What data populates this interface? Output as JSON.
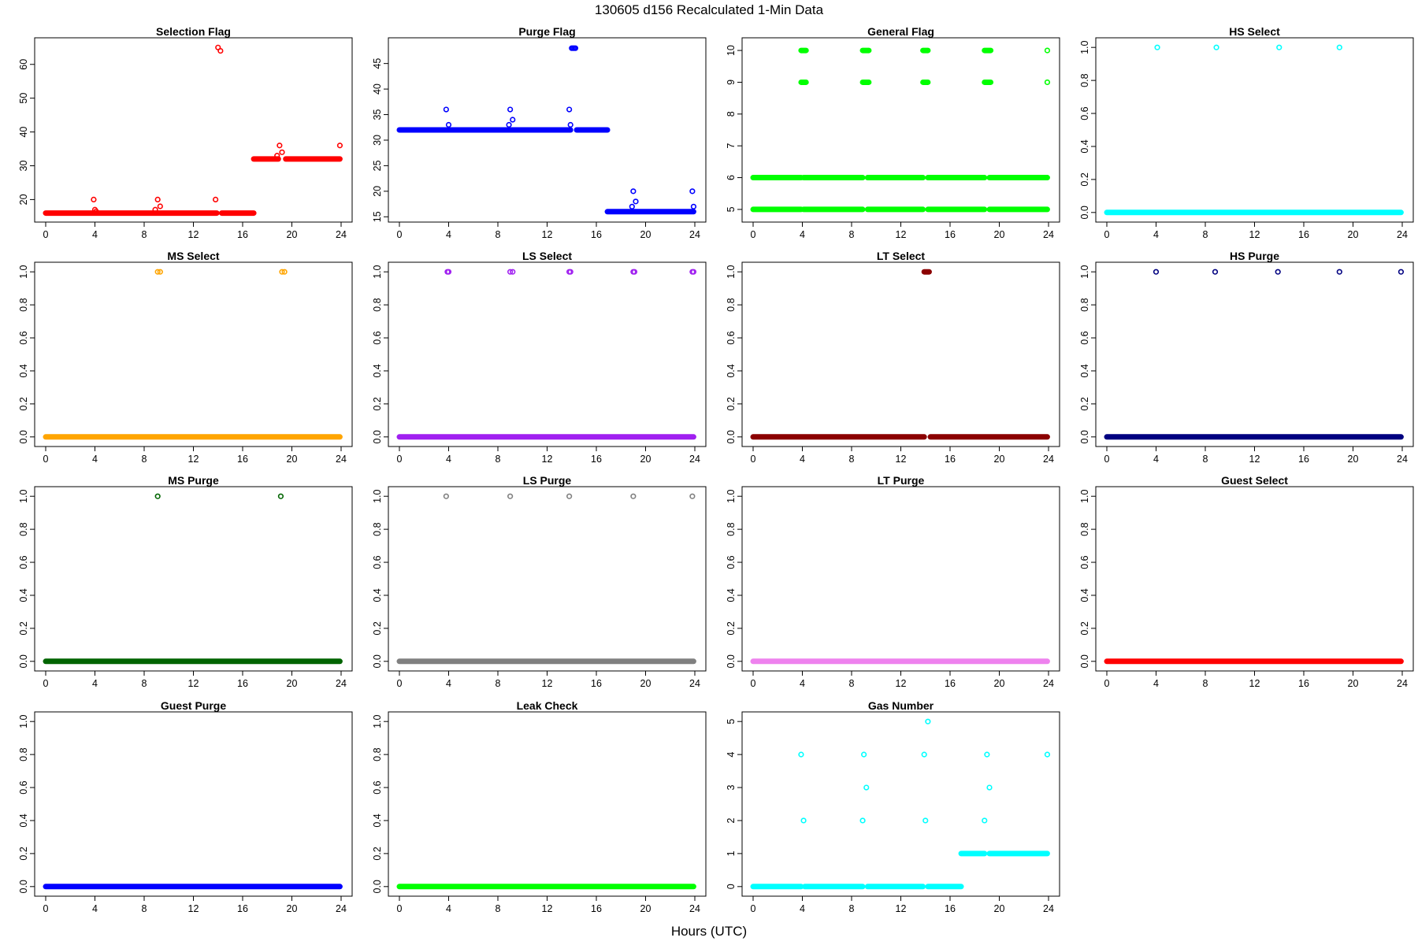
{
  "title": "130605   d156   Recalculated 1-Min Data",
  "xlabel": "Hours (UTC)",
  "chart_data": [
    {
      "type": "scatter",
      "title": "Selection Flag",
      "color": "#ff0000",
      "xlim": [
        0,
        24
      ],
      "ylim": [
        15.2,
        66
      ],
      "xticks": [
        0,
        4,
        8,
        12,
        16,
        20,
        24
      ],
      "yticks": [
        20,
        30,
        40,
        50,
        60
      ],
      "segments": [
        {
          "x": [
            0,
            13.9
          ],
          "y": 16
        },
        {
          "x": [
            14.3,
            16.9
          ],
          "y": 16
        },
        {
          "x": [
            16.9,
            18.9
          ],
          "y": 32
        },
        {
          "x": [
            19.5,
            23.9
          ],
          "y": 32
        }
      ],
      "points": [
        [
          3.9,
          20
        ],
        [
          4.0,
          17
        ],
        [
          4.1,
          16.5
        ],
        [
          8.9,
          17
        ],
        [
          9.1,
          20
        ],
        [
          9.3,
          18
        ],
        [
          13.8,
          20
        ],
        [
          14.0,
          65
        ],
        [
          14.2,
          64
        ],
        [
          18.8,
          33
        ],
        [
          19.0,
          36
        ],
        [
          19.2,
          34
        ],
        [
          23.9,
          36
        ]
      ]
    },
    {
      "type": "scatter",
      "title": "Purge Flag",
      "color": "#0000ff",
      "xlim": [
        0,
        24
      ],
      "ylim": [
        15.2,
        48.8
      ],
      "xticks": [
        0,
        4,
        8,
        12,
        16,
        20,
        24
      ],
      "yticks": [
        15,
        20,
        25,
        30,
        35,
        40,
        45
      ],
      "segments": [
        {
          "x": [
            0,
            13.9
          ],
          "y": 32
        },
        {
          "x": [
            14.4,
            16.9
          ],
          "y": 32
        },
        {
          "x": [
            16.9,
            23.9
          ],
          "y": 16
        }
      ],
      "points": [
        [
          3.8,
          36
        ],
        [
          4.0,
          33
        ],
        [
          8.9,
          33
        ],
        [
          9.0,
          36
        ],
        [
          9.2,
          34
        ],
        [
          13.8,
          36
        ],
        [
          13.9,
          33
        ],
        [
          14.0,
          48
        ],
        [
          14.1,
          48
        ],
        [
          14.2,
          48
        ],
        [
          14.3,
          48
        ],
        [
          18.9,
          17
        ],
        [
          19.0,
          20
        ],
        [
          19.2,
          18
        ],
        [
          23.8,
          20
        ],
        [
          23.9,
          17
        ]
      ]
    },
    {
      "type": "scatter",
      "title": "General Flag",
      "color": "#00ff00",
      "xlim": [
        0,
        24
      ],
      "ylim": [
        4.8,
        10.2
      ],
      "xticks": [
        0,
        4,
        8,
        12,
        16,
        20,
        24
      ],
      "yticks": [
        5,
        6,
        7,
        8,
        9,
        10
      ],
      "segments": [
        {
          "x": [
            0,
            3.9
          ],
          "y": 5
        },
        {
          "x": [
            4.1,
            8.9
          ],
          "y": 5
        },
        {
          "x": [
            9.3,
            13.8
          ],
          "y": 5
        },
        {
          "x": [
            14.2,
            18.8
          ],
          "y": 5
        },
        {
          "x": [
            19.2,
            23.9
          ],
          "y": 5
        },
        {
          "x": [
            0,
            3.9
          ],
          "y": 6
        },
        {
          "x": [
            4.1,
            8.9
          ],
          "y": 6
        },
        {
          "x": [
            9.3,
            13.8
          ],
          "y": 6
        },
        {
          "x": [
            14.2,
            18.8
          ],
          "y": 6
        },
        {
          "x": [
            19.2,
            23.9
          ],
          "y": 6
        },
        {
          "x": [
            3.9,
            4.3
          ],
          "y": 9
        },
        {
          "x": [
            8.9,
            9.4
          ],
          "y": 9
        },
        {
          "x": [
            13.8,
            14.2
          ],
          "y": 9
        },
        {
          "x": [
            18.8,
            19.3
          ],
          "y": 9
        },
        {
          "x": [
            3.9,
            4.3
          ],
          "y": 10
        },
        {
          "x": [
            8.9,
            9.4
          ],
          "y": 10
        },
        {
          "x": [
            13.8,
            14.2
          ],
          "y": 10
        },
        {
          "x": [
            18.8,
            19.3
          ],
          "y": 10
        }
      ],
      "points": [
        [
          23.9,
          9
        ],
        [
          23.9,
          10
        ]
      ]
    },
    {
      "type": "scatter",
      "title": "HS Select",
      "color": "#00ffff",
      "xlim": [
        0,
        24
      ],
      "ylim": [
        -0.02,
        1.02
      ],
      "xticks": [
        0,
        4,
        8,
        12,
        16,
        20,
        24
      ],
      "yticks": [
        0.0,
        0.2,
        0.4,
        0.6,
        0.8,
        1.0
      ],
      "segments": [
        {
          "x": [
            0,
            23.9
          ],
          "y": 0
        }
      ],
      "points": [
        [
          4.1,
          1
        ],
        [
          8.9,
          1
        ],
        [
          14.0,
          1
        ],
        [
          18.9,
          1
        ]
      ]
    },
    {
      "type": "scatter",
      "title": "MS Select",
      "color": "#ffa500",
      "xlim": [
        0,
        24
      ],
      "ylim": [
        -0.02,
        1.02
      ],
      "xticks": [
        0,
        4,
        8,
        12,
        16,
        20,
        24
      ],
      "yticks": [
        0.0,
        0.2,
        0.4,
        0.6,
        0.8,
        1.0
      ],
      "segments": [
        {
          "x": [
            0,
            23.9
          ],
          "y": 0
        }
      ],
      "points": [
        [
          9.1,
          1
        ],
        [
          9.3,
          1
        ],
        [
          19.2,
          1
        ],
        [
          19.4,
          1
        ]
      ]
    },
    {
      "type": "scatter",
      "title": "LS Select",
      "color": "#a020f0",
      "xlim": [
        0,
        24
      ],
      "ylim": [
        -0.02,
        1.02
      ],
      "xticks": [
        0,
        4,
        8,
        12,
        16,
        20,
        24
      ],
      "yticks": [
        0.0,
        0.2,
        0.4,
        0.6,
        0.8,
        1.0
      ],
      "segments": [
        {
          "x": [
            0,
            23.9
          ],
          "y": 0
        }
      ],
      "points": [
        [
          3.9,
          1
        ],
        [
          4.0,
          1
        ],
        [
          9.0,
          1
        ],
        [
          9.2,
          1
        ],
        [
          13.8,
          1
        ],
        [
          13.9,
          1
        ],
        [
          19.0,
          1
        ],
        [
          19.1,
          1
        ],
        [
          23.8,
          1
        ],
        [
          23.9,
          1
        ]
      ]
    },
    {
      "type": "scatter",
      "title": "LT Select",
      "color": "#8b0000",
      "xlim": [
        0,
        24
      ],
      "ylim": [
        -0.02,
        1.02
      ],
      "xticks": [
        0,
        4,
        8,
        12,
        16,
        20,
        24
      ],
      "yticks": [
        0.0,
        0.2,
        0.4,
        0.6,
        0.8,
        1.0
      ],
      "segments": [
        {
          "x": [
            0,
            13.9
          ],
          "y": 0
        },
        {
          "x": [
            14.4,
            23.9
          ],
          "y": 0
        },
        {
          "x": [
            13.9,
            14.3
          ],
          "y": 1
        }
      ],
      "points": []
    },
    {
      "type": "scatter",
      "title": "HS Purge",
      "color": "#000080",
      "xlim": [
        0,
        24
      ],
      "ylim": [
        -0.02,
        1.02
      ],
      "xticks": [
        0,
        4,
        8,
        12,
        16,
        20,
        24
      ],
      "yticks": [
        0.0,
        0.2,
        0.4,
        0.6,
        0.8,
        1.0
      ],
      "segments": [
        {
          "x": [
            0,
            23.9
          ],
          "y": 0
        }
      ],
      "points": [
        [
          4.0,
          1
        ],
        [
          8.8,
          1
        ],
        [
          13.9,
          1
        ],
        [
          18.9,
          1
        ],
        [
          23.9,
          1
        ]
      ]
    },
    {
      "type": "scatter",
      "title": "MS Purge",
      "color": "#006400",
      "xlim": [
        0,
        24
      ],
      "ylim": [
        -0.02,
        1.02
      ],
      "xticks": [
        0,
        4,
        8,
        12,
        16,
        20,
        24
      ],
      "yticks": [
        0.0,
        0.2,
        0.4,
        0.6,
        0.8,
        1.0
      ],
      "segments": [
        {
          "x": [
            0,
            23.9
          ],
          "y": 0
        }
      ],
      "points": [
        [
          9.1,
          1
        ],
        [
          19.1,
          1
        ]
      ]
    },
    {
      "type": "scatter",
      "title": "LS Purge",
      "color": "#808080",
      "xlim": [
        0,
        24
      ],
      "ylim": [
        -0.02,
        1.02
      ],
      "xticks": [
        0,
        4,
        8,
        12,
        16,
        20,
        24
      ],
      "yticks": [
        0.0,
        0.2,
        0.4,
        0.6,
        0.8,
        1.0
      ],
      "segments": [
        {
          "x": [
            0,
            23.9
          ],
          "y": 0
        }
      ],
      "points": [
        [
          3.8,
          1
        ],
        [
          9.0,
          1
        ],
        [
          13.8,
          1
        ],
        [
          19.0,
          1
        ],
        [
          23.8,
          1
        ]
      ]
    },
    {
      "type": "scatter",
      "title": "LT Purge",
      "color": "#ee82ee",
      "xlim": [
        0,
        24
      ],
      "ylim": [
        -0.02,
        1.02
      ],
      "xticks": [
        0,
        4,
        8,
        12,
        16,
        20,
        24
      ],
      "yticks": [
        0.0,
        0.2,
        0.4,
        0.6,
        0.8,
        1.0
      ],
      "segments": [
        {
          "x": [
            0,
            23.9
          ],
          "y": 0
        }
      ],
      "points": []
    },
    {
      "type": "scatter",
      "title": "Guest Select",
      "color": "#ff0000",
      "xlim": [
        0,
        24
      ],
      "ylim": [
        -0.02,
        1.02
      ],
      "xticks": [
        0,
        4,
        8,
        12,
        16,
        20,
        24
      ],
      "yticks": [
        0.0,
        0.2,
        0.4,
        0.6,
        0.8,
        1.0
      ],
      "segments": [
        {
          "x": [
            0,
            23.9
          ],
          "y": 0
        }
      ],
      "points": []
    },
    {
      "type": "scatter",
      "title": "Guest Purge",
      "color": "#0000ff",
      "xlim": [
        0,
        24
      ],
      "ylim": [
        -0.02,
        1.02
      ],
      "xticks": [
        0,
        4,
        8,
        12,
        16,
        20,
        24
      ],
      "yticks": [
        0.0,
        0.2,
        0.4,
        0.6,
        0.8,
        1.0
      ],
      "segments": [
        {
          "x": [
            0,
            23.9
          ],
          "y": 0
        }
      ],
      "points": []
    },
    {
      "type": "scatter",
      "title": "Leak Check",
      "color": "#00ff00",
      "xlim": [
        0,
        24
      ],
      "ylim": [
        -0.02,
        1.02
      ],
      "xticks": [
        0,
        4,
        8,
        12,
        16,
        20,
        24
      ],
      "yticks": [
        0.0,
        0.2,
        0.4,
        0.6,
        0.8,
        1.0
      ],
      "segments": [
        {
          "x": [
            0,
            23.9
          ],
          "y": 0
        }
      ],
      "points": []
    },
    {
      "type": "scatter",
      "title": "Gas Number",
      "color": "#00ffff",
      "xlim": [
        0,
        24
      ],
      "ylim": [
        -0.1,
        5.1
      ],
      "xticks": [
        0,
        4,
        8,
        12,
        16,
        20,
        24
      ],
      "yticks": [
        0,
        1,
        2,
        3,
        4,
        5
      ],
      "segments": [
        {
          "x": [
            0,
            3.9
          ],
          "y": 0
        },
        {
          "x": [
            4.2,
            8.9
          ],
          "y": 0
        },
        {
          "x": [
            9.3,
            13.8
          ],
          "y": 0
        },
        {
          "x": [
            14.2,
            16.9
          ],
          "y": 0
        },
        {
          "x": [
            16.9,
            18.8
          ],
          "y": 1
        },
        {
          "x": [
            19.2,
            23.9
          ],
          "y": 1
        }
      ],
      "points": [
        [
          3.9,
          4
        ],
        [
          4.1,
          2
        ],
        [
          8.9,
          2
        ],
        [
          9.0,
          4
        ],
        [
          9.2,
          3
        ],
        [
          13.9,
          4
        ],
        [
          14.0,
          2
        ],
        [
          14.2,
          5
        ],
        [
          18.8,
          2
        ],
        [
          19.0,
          4
        ],
        [
          19.2,
          3
        ],
        [
          23.9,
          4
        ]
      ]
    }
  ]
}
